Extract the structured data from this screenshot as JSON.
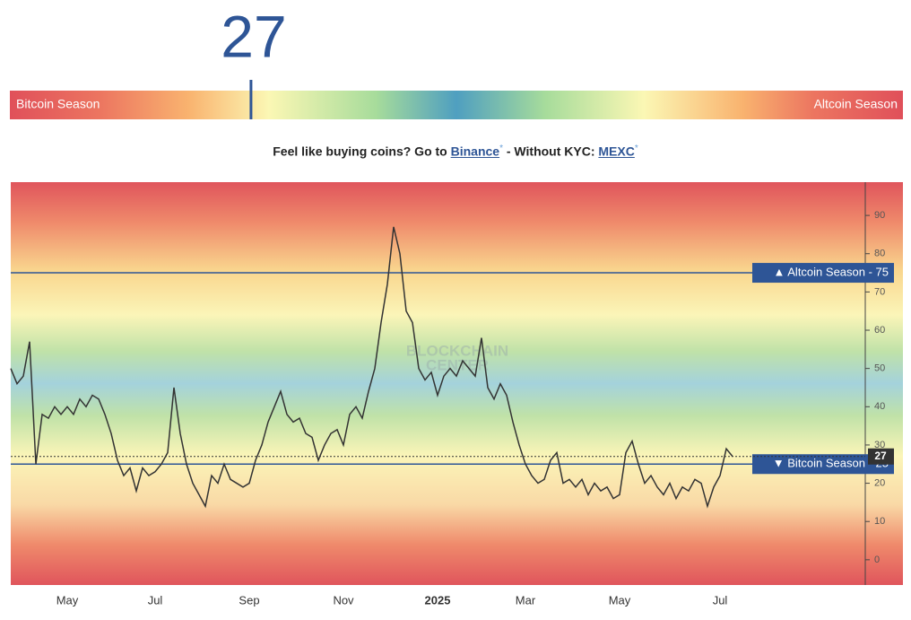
{
  "index": {
    "value": 27,
    "left_label": "Bitcoin Season",
    "right_label": "Altcoin Season",
    "scale": [
      0,
      100
    ]
  },
  "promo": {
    "lead": "Feel like buying coins? Go to ",
    "link1": "Binance",
    "mark": "*",
    "middle": " - Without KYC: ",
    "link2": "MEXC"
  },
  "chart_data": {
    "type": "line",
    "watermark": [
      "BLOCKCHAIN",
      "CENTER"
    ],
    "categories": [
      null,
      null,
      null,
      null,
      null,
      null,
      null,
      null,
      null,
      "May",
      null,
      null,
      null,
      null,
      null,
      null,
      null,
      null,
      null,
      null,
      null,
      null,
      null,
      "Jul",
      null,
      null,
      null,
      null,
      null,
      null,
      null,
      null,
      null,
      null,
      null,
      null,
      null,
      null,
      "Sep",
      null,
      null,
      null,
      null,
      null,
      null,
      null,
      null,
      null,
      null,
      null,
      null,
      null,
      null,
      "Nov",
      null,
      null,
      null,
      null,
      null,
      null,
      null,
      null,
      null,
      null,
      null,
      null,
      null,
      null,
      "2025",
      null,
      null,
      null,
      null,
      null,
      null,
      null,
      null,
      null,
      null,
      null,
      null,
      null,
      "Mar",
      null,
      null,
      null,
      null,
      null,
      null,
      null,
      null,
      null,
      null,
      null,
      null,
      null,
      null,
      "May",
      null,
      null,
      null,
      null,
      null,
      null,
      null,
      null,
      null,
      null,
      null,
      null,
      null,
      null,
      null,
      "Jul",
      null,
      null
    ],
    "series": [
      {
        "color": "#333333",
        "values": [
          50,
          46,
          48,
          57,
          25,
          38,
          37,
          40,
          38,
          40,
          38,
          42,
          40,
          43,
          42,
          38,
          33,
          26,
          22,
          24,
          18,
          24,
          22,
          23,
          25,
          28,
          45,
          33,
          25,
          20,
          17,
          14,
          22,
          20,
          25,
          21,
          20,
          19,
          20,
          26,
          30,
          36,
          40,
          44,
          38,
          36,
          37,
          33,
          32,
          26,
          30,
          33,
          34,
          30,
          38,
          40,
          37,
          44,
          50,
          62,
          72,
          87,
          80,
          65,
          62,
          50,
          47,
          49,
          43,
          48,
          50,
          48,
          52,
          50,
          48,
          58,
          45,
          42,
          46,
          43,
          36,
          30,
          25,
          22,
          20,
          21,
          26,
          28,
          20,
          21,
          19,
          21,
          17,
          20,
          18,
          19,
          16,
          17,
          28,
          31,
          25,
          20,
          22,
          19,
          17,
          20,
          16,
          19,
          18,
          21,
          20,
          14,
          19,
          22,
          29,
          27
        ]
      }
    ],
    "ylim": [
      -6.6,
      98.7
    ],
    "yticks": [
      0,
      10,
      20,
      30,
      40,
      50,
      60,
      70,
      80,
      90
    ],
    "annotations": [
      {
        "value": 75,
        "label": "▲ Altcoin Season - 75",
        "color": "#2e5596"
      },
      {
        "value": 25,
        "label": "▼ Bitcoin Season - 25",
        "color": "#2e5596"
      }
    ]
  }
}
